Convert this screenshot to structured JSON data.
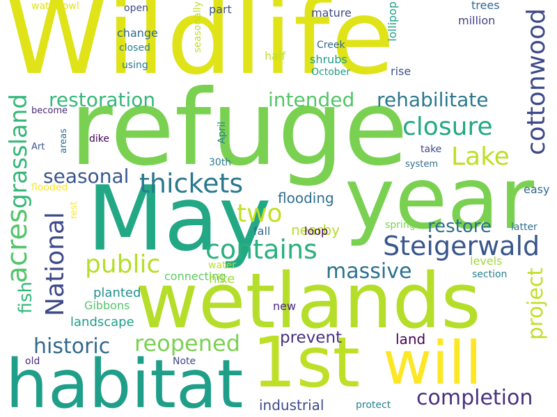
{
  "wordcloud": {
    "words": [
      "Wildlife",
      "refuge",
      "May",
      "year",
      "wetlands",
      "habitat",
      "1st",
      "will",
      "restoration",
      "intended",
      "rehabilitate",
      "closure",
      "Lake",
      "thickets",
      "seasonal",
      "flooding",
      "two",
      "nearby",
      "restore",
      "contains",
      "Steigerwald",
      "public",
      "massive",
      "historic",
      "reopened",
      "prevent",
      "land",
      "completion",
      "industrial",
      "landscape",
      "planted",
      "Gibbons",
      "connecting",
      "hike",
      "water",
      "new",
      "fall",
      "loop",
      "spring",
      "levels",
      "section",
      "latter",
      "easy",
      "Note",
      "old",
      "protect",
      "waterfowl",
      "open",
      "part",
      "mature",
      "trees",
      "million",
      "change",
      "closed",
      "using",
      "half",
      "Creek",
      "shrubs",
      "October",
      "rise",
      "become",
      "dike",
      "Art",
      "take",
      "system",
      "30th",
      "flooded",
      "acres",
      "grassland",
      "National",
      "fish",
      "cottonwood",
      "project",
      "lollipop",
      "seasonally",
      "April",
      "areas",
      "rest"
    ]
  }
}
